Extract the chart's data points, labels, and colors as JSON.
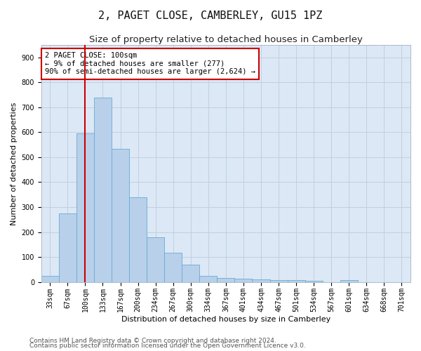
{
  "title": "2, PAGET CLOSE, CAMBERLEY, GU15 1PZ",
  "subtitle": "Size of property relative to detached houses in Camberley",
  "xlabel": "Distribution of detached houses by size in Camberley",
  "ylabel": "Number of detached properties",
  "categories": [
    "33sqm",
    "67sqm",
    "100sqm",
    "133sqm",
    "167sqm",
    "200sqm",
    "234sqm",
    "267sqm",
    "300sqm",
    "334sqm",
    "367sqm",
    "401sqm",
    "434sqm",
    "467sqm",
    "501sqm",
    "534sqm",
    "567sqm",
    "601sqm",
    "634sqm",
    "668sqm",
    "701sqm"
  ],
  "values": [
    25,
    275,
    595,
    740,
    535,
    340,
    178,
    118,
    70,
    25,
    15,
    13,
    10,
    8,
    7,
    5,
    0,
    8,
    0,
    0,
    0
  ],
  "bar_color": "#b8d0ea",
  "bar_edge_color": "#6aaad4",
  "vline_x_index": 2,
  "vline_color": "#cc0000",
  "annotation_text": "2 PAGET CLOSE: 100sqm\n← 9% of detached houses are smaller (277)\n90% of semi-detached houses are larger (2,624) →",
  "annotation_box_color": "#cc0000",
  "annotation_fill": "#ffffff",
  "ylim": [
    0,
    950
  ],
  "yticks": [
    0,
    100,
    200,
    300,
    400,
    500,
    600,
    700,
    800,
    900
  ],
  "footer1": "Contains HM Land Registry data © Crown copyright and database right 2024.",
  "footer2": "Contains public sector information licensed under the Open Government Licence v3.0.",
  "bg_color": "#ffffff",
  "plot_bg_color": "#dce8f5",
  "grid_color": "#c0d0e0",
  "title_fontsize": 11,
  "subtitle_fontsize": 9.5,
  "axis_label_fontsize": 8,
  "tick_fontsize": 7,
  "annotation_fontsize": 7.5,
  "footer_fontsize": 6.5
}
